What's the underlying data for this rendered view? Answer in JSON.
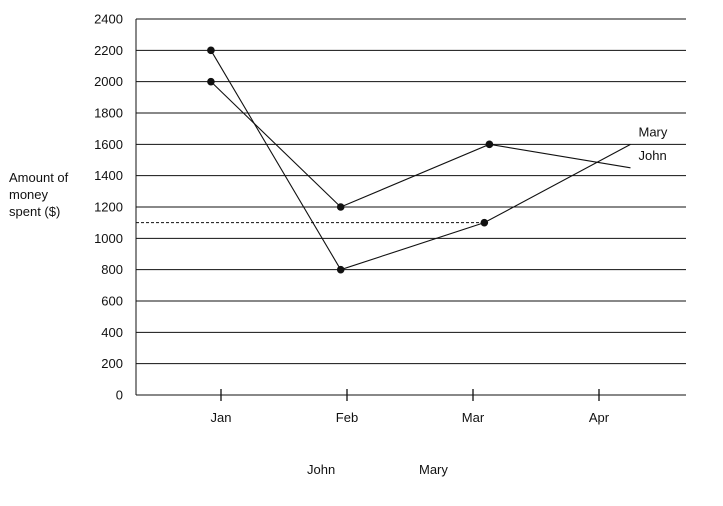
{
  "chart_data": {
    "type": "line",
    "title": "",
    "xlabel": "",
    "ylabel_lines": [
      "Amount of",
      "money",
      "spent ($)"
    ],
    "categories": [
      "Jan",
      "Feb",
      "Mar",
      "Apr"
    ],
    "ylim": [
      0,
      2400
    ],
    "yticks": [
      0,
      200,
      400,
      600,
      800,
      1000,
      1200,
      1400,
      1600,
      1800,
      2000,
      2200,
      2400
    ],
    "grid": "horizontal",
    "series": [
      {
        "name": "John",
        "points": [
          {
            "x": 0.92,
            "y": 2000
          },
          {
            "x": 1.95,
            "y": 1200
          },
          {
            "x": 3.13,
            "y": 1600
          },
          {
            "x": 4.25,
            "y": 1450
          }
        ],
        "markers": [
          true,
          true,
          true,
          false
        ]
      },
      {
        "name": "Mary",
        "points": [
          {
            "x": 0.92,
            "y": 2200
          },
          {
            "x": 1.95,
            "y": 800
          },
          {
            "x": 3.09,
            "y": 1100
          },
          {
            "x": 4.25,
            "y": 1600
          }
        ],
        "markers": [
          true,
          true,
          true,
          false
        ]
      }
    ],
    "reference_line": {
      "y": 1100,
      "x_from": 0,
      "x_to": 3.09,
      "style": "dashed"
    },
    "legend": [
      "John",
      "Mary"
    ],
    "legend_position": "bottom"
  }
}
